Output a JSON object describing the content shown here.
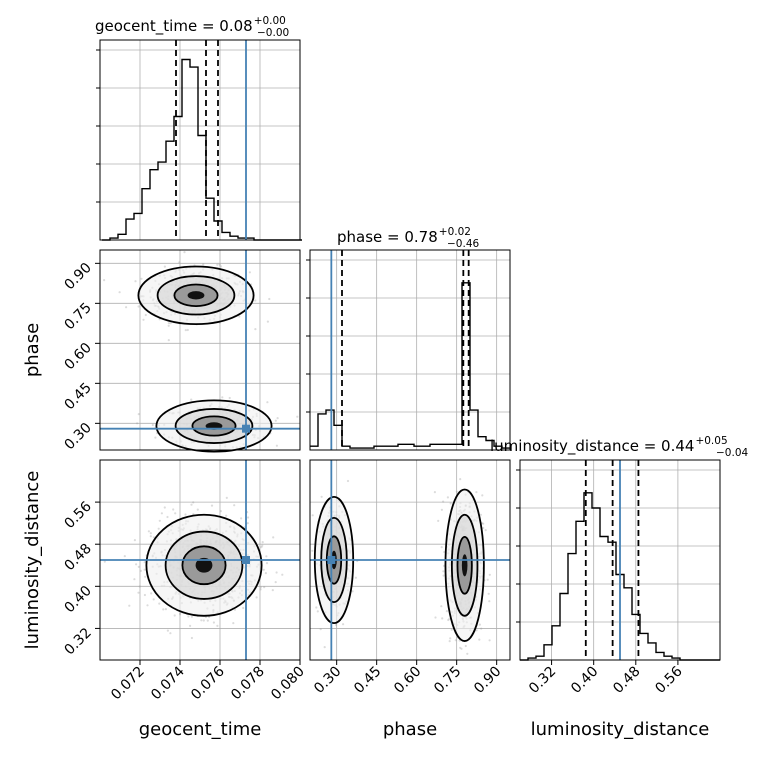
{
  "chart_data": {
    "type": "corner",
    "parameters": [
      "geocent_time",
      "phase",
      "luminosity_distance"
    ],
    "truth": {
      "geocent_time": 0.0773,
      "phase": 0.28,
      "luminosity_distance": 0.45
    },
    "marginals": [
      {
        "parameter": "geocent_time",
        "title_prefix": "geocent_time = 0.08",
        "sup": "+0.00",
        "sub": "−0.00",
        "range": [
          0.07,
          0.08
        ],
        "ticks": [
          "0.072",
          "0.074",
          "0.076",
          "0.078",
          "0.080"
        ],
        "quantiles": [
          0.0738,
          0.0753,
          0.0759
        ],
        "truth": 0.0773,
        "ymax": 1.0,
        "hist": {
          "x0": 0.0701,
          "dx": 0.0004,
          "counts": [
            0,
            0.01,
            0.03,
            0.11,
            0.14,
            0.27,
            0.37,
            0.41,
            0.52,
            0.65,
            0.95,
            0.91,
            0.55,
            0.22,
            0.1,
            0.04,
            0.02,
            0.01,
            0.01,
            0,
            0,
            0,
            0,
            0,
            0
          ]
        }
      },
      {
        "parameter": "phase",
        "title_prefix": "phase = 0.78",
        "sup": "+0.02",
        "sub": "−0.46",
        "range": [
          0.2,
          0.95
        ],
        "ticks": [
          "0.30",
          "0.45",
          "0.60",
          "0.75",
          "0.90"
        ],
        "quantiles": [
          0.32,
          0.775,
          0.795
        ],
        "truth": 0.28,
        "ymax": 1.0,
        "hist": {
          "x0": 0.2,
          "dx": 0.03,
          "counts": [
            0.02,
            0.19,
            0.21,
            0.13,
            0.02,
            0.01,
            0.01,
            0.01,
            0.02,
            0.02,
            0.02,
            0.03,
            0.03,
            0.02,
            0.02,
            0.03,
            0.03,
            0.03,
            0.03,
            0.88,
            0.21,
            0.07,
            0.05,
            0.02,
            0.01
          ]
        }
      },
      {
        "parameter": "luminosity_distance",
        "title_prefix": "luminosity_distance = 0.44",
        "sup": "+0.05",
        "sub": "−0.04",
        "range": [
          0.26,
          0.64
        ],
        "ticks": [
          "0.32",
          "0.40",
          "0.48",
          "0.56"
        ],
        "quantiles": [
          0.385,
          0.436,
          0.485
        ],
        "truth": 0.45,
        "ymax": 1.0,
        "hist": {
          "x0": 0.26,
          "dx": 0.0152,
          "counts": [
            0,
            0.01,
            0.02,
            0.08,
            0.18,
            0.35,
            0.56,
            0.73,
            0.88,
            0.8,
            0.65,
            0.62,
            0.45,
            0.38,
            0.24,
            0.14,
            0.09,
            0.04,
            0.02,
            0.01,
            0,
            0,
            0,
            0,
            0
          ]
        }
      }
    ],
    "pairs": [
      {
        "x": "geocent_time",
        "y": "phase",
        "modes": [
          {
            "x": 0.0748,
            "y": 0.78,
            "sx": 0.0012,
            "sy": 0.045,
            "w": 0.6
          },
          {
            "x": 0.0757,
            "y": 0.29,
            "sx": 0.0012,
            "sy": 0.04,
            "w": 0.4
          }
        ]
      },
      {
        "x": "geocent_time",
        "y": "luminosity_distance",
        "modes": [
          {
            "x": 0.0752,
            "y": 0.44,
            "sx": 0.0012,
            "sy": 0.04,
            "w": 1.0
          }
        ]
      },
      {
        "x": "phase",
        "y": "luminosity_distance",
        "modes": [
          {
            "x": 0.78,
            "y": 0.44,
            "sx": 0.03,
            "sy": 0.06,
            "w": 0.7
          },
          {
            "x": 0.29,
            "y": 0.45,
            "sx": 0.03,
            "sy": 0.05,
            "w": 0.3
          }
        ]
      }
    ],
    "colors": {
      "truth": "#4682b4",
      "hist": "#000000",
      "samples": "#9a9a9a",
      "grid": "#b0b0b0"
    }
  }
}
